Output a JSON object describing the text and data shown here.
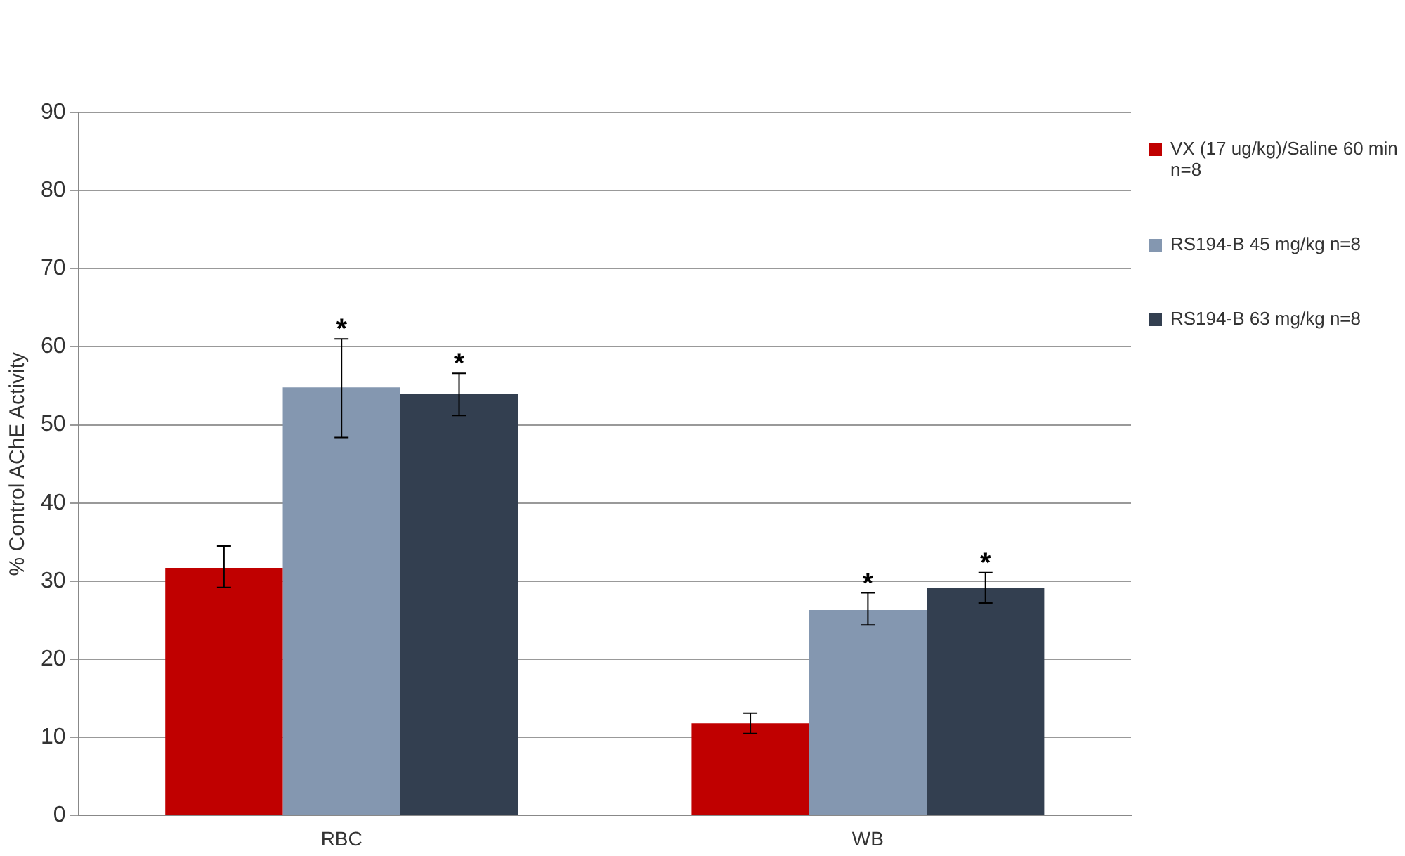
{
  "chart_data": {
    "type": "bar",
    "ylabel": "% Control AChE Activity",
    "categories": [
      "RBC",
      "WB"
    ],
    "series": [
      {
        "name": "VX (17 ug/kg)/Saline 60 min n=8",
        "color": "#c00000",
        "values": [
          31.7,
          11.8
        ],
        "errors": [
          [
            29.2,
            34.5
          ],
          [
            10.5,
            13.1
          ]
        ]
      },
      {
        "name": "RS194-B 45 mg/kg n=8",
        "color": "#8497b0",
        "values": [
          54.8,
          26.3
        ],
        "errors": [
          [
            48.4,
            61
          ],
          [
            24.4,
            28.5
          ]
        ],
        "value_labels": [
          "*",
          "*"
        ]
      },
      {
        "name": "RS194-B 63 mg/kg n=8",
        "color": "#333f50",
        "values": [
          54,
          29.1
        ],
        "errors": [
          [
            51.2,
            56.6
          ],
          [
            27.2,
            31.1
          ]
        ],
        "value_labels": [
          "*",
          "*"
        ]
      }
    ],
    "ylim": [
      0,
      90
    ],
    "yticks": [
      0,
      10,
      20,
      30,
      40,
      50,
      60,
      70,
      80,
      90
    ],
    "grid": "y",
    "legend": "right"
  }
}
